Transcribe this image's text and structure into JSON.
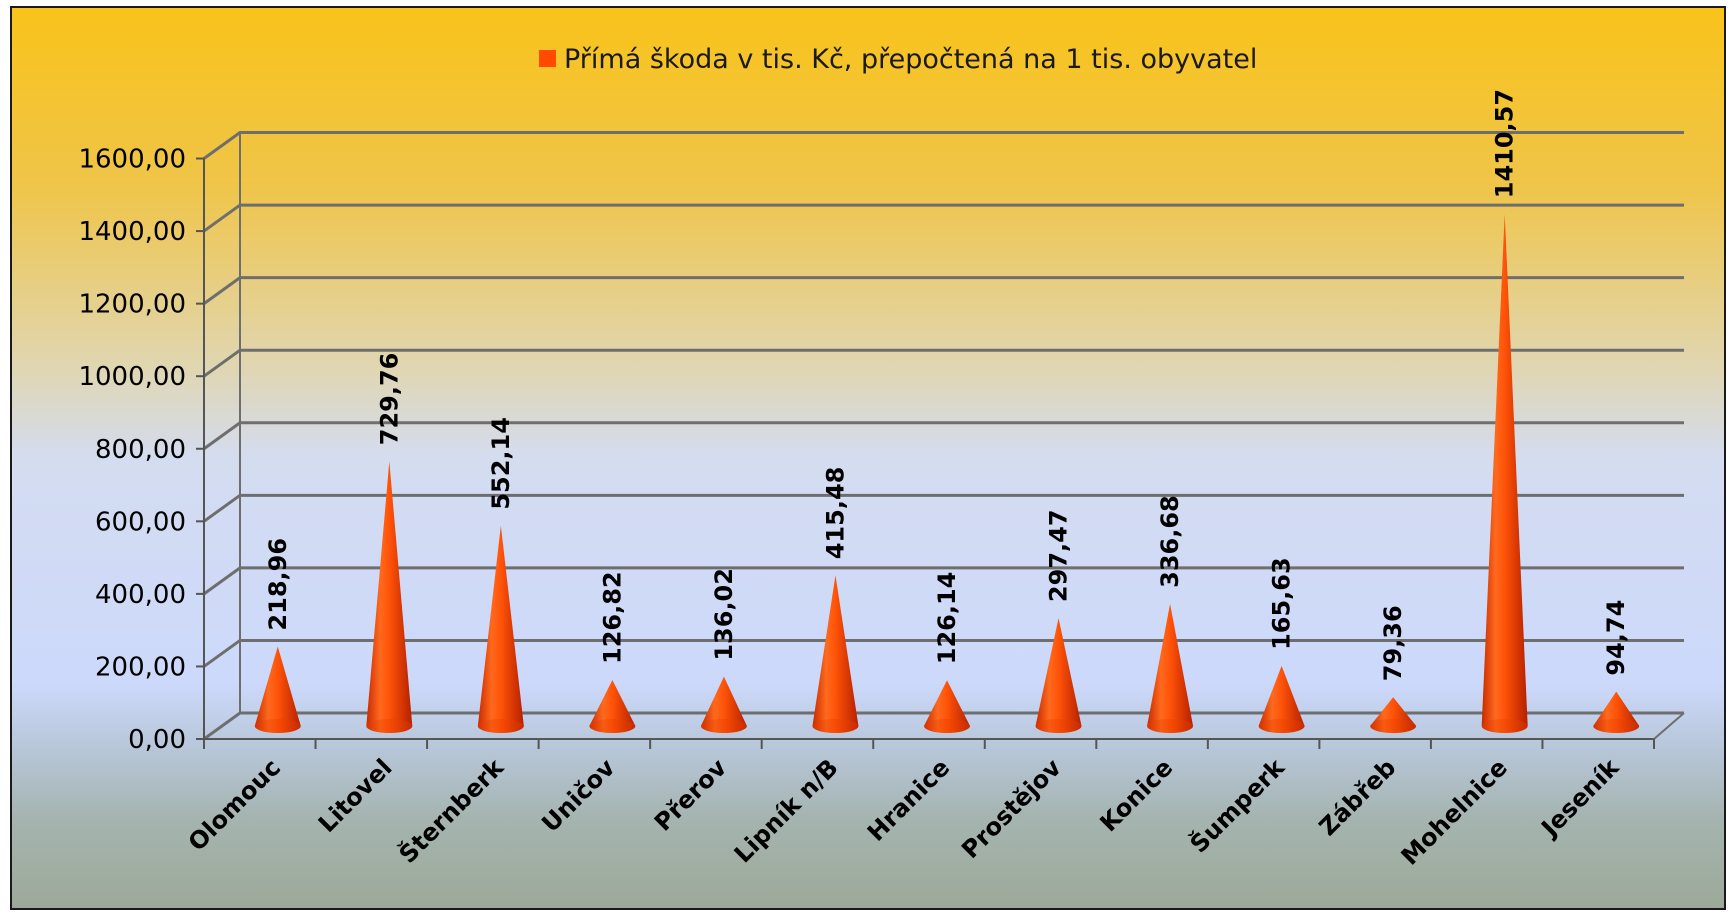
{
  "chart_data": {
    "type": "bar",
    "style": "3d-cone",
    "categories": [
      "Olomouc",
      "Litovel",
      "Šternberk",
      "Uničov",
      "Přerov",
      "Lipník n/B",
      "Hranice",
      "Prostějov",
      "Konice",
      "Šumperk",
      "Zábřeb",
      "Mohelnice",
      "Jeseník"
    ],
    "series": [
      {
        "name": "Přímá škoda v tis. Kč, přepočtená na 1 tis. obyvatel",
        "values": [
          218.96,
          729.76,
          552.14,
          126.82,
          136.02,
          415.48,
          126.14,
          297.47,
          336.68,
          165.63,
          79.36,
          1410.57,
          94.74
        ],
        "labels": [
          "218,96",
          "729,76",
          "552,14",
          "126,82",
          "136,02",
          "415,48",
          "126,14",
          "297,47",
          "336,68",
          "165,63",
          "79,36",
          "1410,57",
          "94,74"
        ]
      }
    ],
    "yticks": [
      "0,00",
      "200,00",
      "400,00",
      "600,00",
      "800,00",
      "1000,00",
      "1200,00",
      "1400,00",
      "1600,00"
    ],
    "ylim": [
      0,
      1600
    ],
    "legend_position": "top",
    "grid": true,
    "colors": {
      "series": "#ff4a00",
      "grid": "#6e6e6e"
    }
  }
}
